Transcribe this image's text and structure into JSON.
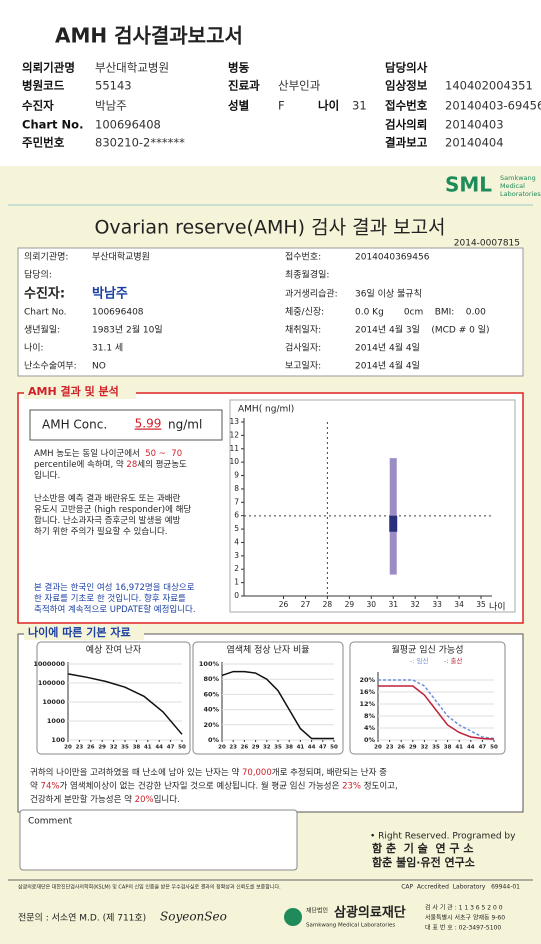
{
  "header": {
    "title": "AMH 검사결과보고서"
  },
  "summary": {
    "rows": [
      {
        "left": {
          "label": "의뢰기관명",
          "value": "부산대학교병원"
        },
        "middle": {
          "label": "병동"
        },
        "right": {
          "label": "담당의사"
        }
      },
      {
        "left": {
          "label": "병원코드",
          "value": "55143"
        },
        "middle": {
          "label": "진료과",
          "value": "산부인과"
        },
        "right": {
          "label": "임상정보",
          "value": "140402004351"
        }
      },
      {
        "left": {
          "label": "수진자",
          "value": "박남주"
        },
        "middle": {
          "label": "성별",
          "value": "F",
          "age_label": "나이",
          "age": 31
        },
        "right": {
          "label": "접수번호",
          "value": "20140403-69456"
        }
      },
      {
        "left": {
          "label": "Chart No.",
          "value": "100696408"
        },
        "right": {
          "label": "검사의뢰",
          "value": "20140403"
        }
      },
      {
        "left": {
          "label": "주민번호",
          "value": "830210-2******"
        },
        "right": {
          "label": "결과보고",
          "value": "20140404"
        }
      }
    ]
  },
  "report": {
    "logo": "SML",
    "logo_sub": [
      "Samkwang",
      "Medical",
      "Laboratories"
    ],
    "title": "Ovarian reserve(AMH) 검사 결과 보고서",
    "number": "2014-0007815",
    "info_left": [
      {
        "label": "의뢰기관명:",
        "value": "부산대학교병원"
      },
      {
        "label": "담당의:"
      },
      {
        "label": "수진자:",
        "value": "박남주"
      },
      {
        "label": "Chart No.",
        "value": "100696408"
      },
      {
        "label": "생년월일:",
        "value": "1983년 2월 10일"
      },
      {
        "label": "나이:",
        "value": "31.1 세"
      },
      {
        "label": "난소수술여부:",
        "value": "NO"
      }
    ],
    "info_right": [
      {
        "label": "접수번호:",
        "value": "2014040369456"
      },
      {
        "label": "최종월경일:"
      },
      {
        "label": "과거생리습관:",
        "value": "36일 이상 불규칙"
      },
      {
        "label": "체중/신장:",
        "value": "0.0 Kg       0cm    BMI:    0.00"
      },
      {
        "label": "채취일자:",
        "value": "2014년 4월 3일    (MCD # 0 일)"
      },
      {
        "label": "검사일자:",
        "value": "2014년 4월 4일"
      },
      {
        "label": "보고일자:",
        "value": "2014년 4월 4일"
      }
    ]
  },
  "amh": {
    "section_title": "AMH 결과 및 분석",
    "conc_label": "AMH Conc.",
    "conc_value": 5.99,
    "conc_unit": "ng/ml",
    "paragraphs": [
      {
        "color": "#222",
        "lines": [
          [
            {
              "text": "AMH 농도는 동일 나이군에서  "
            },
            {
              "text": "50 ~  70",
              "color": "#d0202a"
            }
          ],
          [
            {
              "text": "percentile에 속하며, 약 "
            },
            {
              "text": "28",
              "color": "#d0202a"
            },
            {
              "text": "세의 평균농도"
            }
          ],
          [
            {
              "text": "입니다."
            }
          ]
        ]
      },
      {
        "color": "#222",
        "lines": [
          [
            {
              "text": "난소반응 예측 결과 배란유도 또는 과배란"
            }
          ],
          [
            {
              "text": "유도시 고반응군 (high responder)에 해당"
            }
          ],
          [
            {
              "text": "합니다. 난소과자극 증후군의 발생을 예방"
            }
          ],
          [
            {
              "text": "하기 위한 주의가 필요할 수 있습니다."
            }
          ]
        ]
      },
      {
        "color": "#1a3fa0",
        "lines": [
          [
            {
              "text": "본 결과는 한국인 여성 16,972명을 대상으로"
            }
          ],
          [
            {
              "text": "한 자료를 기초로 한 것입니다. 향후 자료를"
            }
          ],
          [
            {
              "text": "축적하여 계속적으로 UPDATE할 예정입니다."
            }
          ]
        ]
      }
    ]
  },
  "amh_chart": {
    "type": "box",
    "y_label": "AMH( ng/ml)",
    "x_label": "나이",
    "ylim": [
      0,
      13
    ],
    "yticks": [
      0,
      1,
      2,
      3,
      4,
      5,
      6,
      7,
      8,
      9,
      10,
      11,
      12,
      13
    ],
    "xlim": [
      24.2,
      35.5
    ],
    "xticks": [
      26,
      27,
      28,
      29,
      30,
      31,
      32,
      33,
      34,
      35
    ],
    "box": {
      "x": 31,
      "low": 1.6,
      "q1": 4.8,
      "q3": 6.0,
      "high": 10.3
    },
    "box_color": "#9c8cc4",
    "iqr_color": "#28307e",
    "reference_age": 28
  },
  "basics": {
    "section_title": "나이에 따른 기본 자료",
    "charts": [
      {
        "type": "line",
        "title": "예상 잔여 난자",
        "log_scale": true,
        "ylim": [
          100,
          1000000
        ],
        "yticks": [
          100,
          1000,
          10000,
          100000,
          1000000
        ],
        "xlim": [
          20,
          50
        ],
        "xticks": [
          20,
          23,
          26,
          29,
          32,
          35,
          38,
          41,
          44,
          47,
          50
        ],
        "x": [
          20,
          25,
          30,
          35,
          40,
          45,
          50
        ],
        "series": [
          {
            "color": "#111",
            "values": [
              300000,
              200000,
              120000,
              60000,
              20000,
              3000,
              200
            ]
          }
        ]
      },
      {
        "type": "line",
        "title": "염색체 정상 난자 비율",
        "ylim": [
          0,
          100
        ],
        "yticks": [
          {
            "value": 0,
            "label": "0%"
          },
          {
            "value": 20,
            "label": "20%"
          },
          {
            "value": 40,
            "label": "40%"
          },
          {
            "value": 60,
            "label": "60%"
          },
          {
            "value": 80,
            "label": "80%"
          },
          {
            "value": 100,
            "label": "100%"
          }
        ],
        "xlim": [
          20,
          50
        ],
        "xticks": [
          20,
          23,
          26,
          29,
          32,
          35,
          38,
          41,
          44,
          47,
          50
        ],
        "x": [
          20,
          23,
          26,
          29,
          32,
          35,
          38,
          41,
          44,
          47,
          50
        ],
        "series": [
          {
            "color": "#111",
            "values": [
              85,
              90,
              90,
              88,
              80,
              65,
              40,
              15,
              2,
              2,
              2
            ]
          }
        ]
      },
      {
        "type": "line",
        "title": "월평균 임신 가능성",
        "legend_prefix": "-:",
        "ylim": [
          0,
          22
        ],
        "yticks": [
          {
            "value": 0,
            "label": "0%"
          },
          {
            "value": 4,
            "label": "4%"
          },
          {
            "value": 8,
            "label": "8%"
          },
          {
            "value": 12,
            "label": "12%"
          },
          {
            "value": 16,
            "label": "16%"
          },
          {
            "value": 20,
            "label": "20%"
          }
        ],
        "xlim": [
          20,
          50
        ],
        "xticks": [
          20,
          23,
          26,
          29,
          32,
          35,
          38,
          41,
          44,
          47,
          50
        ],
        "x": [
          20,
          29,
          32,
          35,
          38,
          41,
          44,
          47,
          50
        ],
        "series": [
          {
            "name": "임신",
            "color": "#6a8fd8",
            "values": [
              20,
              20,
              18,
              13,
              8,
              5,
              3,
              1,
              0.5
            ]
          },
          {
            "name": "출산",
            "color": "#c0203a",
            "values": [
              18,
              18,
              15,
              10,
              5,
              2.5,
              1,
              0.5,
              0.3
            ]
          }
        ]
      }
    ],
    "paragraph": {
      "color": "#222",
      "lines": [
        [
          {
            "text": "귀하의 나이만을 고려하였을 때 난소에 남아 있는 난자는 약 "
          },
          {
            "text": "70,000",
            "color": "#d0202a"
          },
          {
            "text": "개로 추정되며, 배란되는 난자 중"
          }
        ],
        [
          {
            "text": "약 "
          },
          {
            "text": "74%",
            "color": "#d0202a"
          },
          {
            "text": "가 염색체이상이 없는 건강한 난자일 것으로 예상됩니다. 월 평균 임신 가능성은 "
          },
          {
            "text": "23%",
            "color": "#d0202a"
          },
          {
            "text": " 정도이고,"
          }
        ],
        [
          {
            "text": "건강하게 분만할 가능성은 약 "
          },
          {
            "text": "20%",
            "color": "#d0202a"
          },
          {
            "text": "입니다."
          }
        ]
      ]
    }
  },
  "comment": {
    "label": "Comment"
  },
  "credits": [
    "• Right Reserved. Programed by",
    "함 춘  기 술  연 구 소",
    "함춘 불임·유전 연구소"
  ],
  "footer": {
    "note": "삼광의료재단은 대한진단검사의학회(KSLM) 및 CAP의 신임 인증을 받은 우수검사실로 결과의 정확성과 신뢰도를 보증합니다.",
    "cap": "CAP  Accredited  Laboratory   69944-01",
    "doctor": "전문의 : 서소연 M.D. (제 711호)",
    "signature": "SoyeonSeo",
    "org_prefix": "재단법인",
    "org": "삼광의료재단",
    "org_en": "Samkwang Medical Laboratories",
    "address": [
      "검 사 기 관 : 1 1 3 6 5 2 0 0",
      "서울특별시 서초구 양재동 9-60",
      "대 표 번 호 : 02-3497-5100"
    ]
  }
}
